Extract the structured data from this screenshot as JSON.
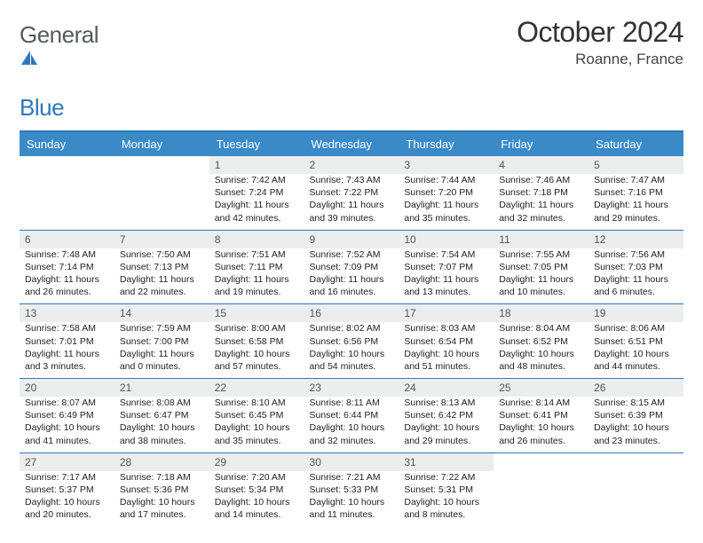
{
  "brand": {
    "name_a": "General",
    "name_b": "Blue"
  },
  "title": {
    "month": "October 2024",
    "location": "Roanne, France"
  },
  "colors": {
    "accent": "#3a8ac8",
    "rule": "#2f77bb",
    "daynum_bg": "#eceded"
  },
  "weekday_labels": [
    "Sunday",
    "Monday",
    "Tuesday",
    "Wednesday",
    "Thursday",
    "Friday",
    "Saturday"
  ],
  "weeks": [
    [
      {
        "n": "",
        "sr": "",
        "ss": "",
        "dl": ""
      },
      {
        "n": "",
        "sr": "",
        "ss": "",
        "dl": ""
      },
      {
        "n": "1",
        "sr": "Sunrise: 7:42 AM",
        "ss": "Sunset: 7:24 PM",
        "dl": "Daylight: 11 hours and 42 minutes."
      },
      {
        "n": "2",
        "sr": "Sunrise: 7:43 AM",
        "ss": "Sunset: 7:22 PM",
        "dl": "Daylight: 11 hours and 39 minutes."
      },
      {
        "n": "3",
        "sr": "Sunrise: 7:44 AM",
        "ss": "Sunset: 7:20 PM",
        "dl": "Daylight: 11 hours and 35 minutes."
      },
      {
        "n": "4",
        "sr": "Sunrise: 7:46 AM",
        "ss": "Sunset: 7:18 PM",
        "dl": "Daylight: 11 hours and 32 minutes."
      },
      {
        "n": "5",
        "sr": "Sunrise: 7:47 AM",
        "ss": "Sunset: 7:16 PM",
        "dl": "Daylight: 11 hours and 29 minutes."
      }
    ],
    [
      {
        "n": "6",
        "sr": "Sunrise: 7:48 AM",
        "ss": "Sunset: 7:14 PM",
        "dl": "Daylight: 11 hours and 26 minutes."
      },
      {
        "n": "7",
        "sr": "Sunrise: 7:50 AM",
        "ss": "Sunset: 7:13 PM",
        "dl": "Daylight: 11 hours and 22 minutes."
      },
      {
        "n": "8",
        "sr": "Sunrise: 7:51 AM",
        "ss": "Sunset: 7:11 PM",
        "dl": "Daylight: 11 hours and 19 minutes."
      },
      {
        "n": "9",
        "sr": "Sunrise: 7:52 AM",
        "ss": "Sunset: 7:09 PM",
        "dl": "Daylight: 11 hours and 16 minutes."
      },
      {
        "n": "10",
        "sr": "Sunrise: 7:54 AM",
        "ss": "Sunset: 7:07 PM",
        "dl": "Daylight: 11 hours and 13 minutes."
      },
      {
        "n": "11",
        "sr": "Sunrise: 7:55 AM",
        "ss": "Sunset: 7:05 PM",
        "dl": "Daylight: 11 hours and 10 minutes."
      },
      {
        "n": "12",
        "sr": "Sunrise: 7:56 AM",
        "ss": "Sunset: 7:03 PM",
        "dl": "Daylight: 11 hours and 6 minutes."
      }
    ],
    [
      {
        "n": "13",
        "sr": "Sunrise: 7:58 AM",
        "ss": "Sunset: 7:01 PM",
        "dl": "Daylight: 11 hours and 3 minutes."
      },
      {
        "n": "14",
        "sr": "Sunrise: 7:59 AM",
        "ss": "Sunset: 7:00 PM",
        "dl": "Daylight: 11 hours and 0 minutes."
      },
      {
        "n": "15",
        "sr": "Sunrise: 8:00 AM",
        "ss": "Sunset: 6:58 PM",
        "dl": "Daylight: 10 hours and 57 minutes."
      },
      {
        "n": "16",
        "sr": "Sunrise: 8:02 AM",
        "ss": "Sunset: 6:56 PM",
        "dl": "Daylight: 10 hours and 54 minutes."
      },
      {
        "n": "17",
        "sr": "Sunrise: 8:03 AM",
        "ss": "Sunset: 6:54 PM",
        "dl": "Daylight: 10 hours and 51 minutes."
      },
      {
        "n": "18",
        "sr": "Sunrise: 8:04 AM",
        "ss": "Sunset: 6:52 PM",
        "dl": "Daylight: 10 hours and 48 minutes."
      },
      {
        "n": "19",
        "sr": "Sunrise: 8:06 AM",
        "ss": "Sunset: 6:51 PM",
        "dl": "Daylight: 10 hours and 44 minutes."
      }
    ],
    [
      {
        "n": "20",
        "sr": "Sunrise: 8:07 AM",
        "ss": "Sunset: 6:49 PM",
        "dl": "Daylight: 10 hours and 41 minutes."
      },
      {
        "n": "21",
        "sr": "Sunrise: 8:08 AM",
        "ss": "Sunset: 6:47 PM",
        "dl": "Daylight: 10 hours and 38 minutes."
      },
      {
        "n": "22",
        "sr": "Sunrise: 8:10 AM",
        "ss": "Sunset: 6:45 PM",
        "dl": "Daylight: 10 hours and 35 minutes."
      },
      {
        "n": "23",
        "sr": "Sunrise: 8:11 AM",
        "ss": "Sunset: 6:44 PM",
        "dl": "Daylight: 10 hours and 32 minutes."
      },
      {
        "n": "24",
        "sr": "Sunrise: 8:13 AM",
        "ss": "Sunset: 6:42 PM",
        "dl": "Daylight: 10 hours and 29 minutes."
      },
      {
        "n": "25",
        "sr": "Sunrise: 8:14 AM",
        "ss": "Sunset: 6:41 PM",
        "dl": "Daylight: 10 hours and 26 minutes."
      },
      {
        "n": "26",
        "sr": "Sunrise: 8:15 AM",
        "ss": "Sunset: 6:39 PM",
        "dl": "Daylight: 10 hours and 23 minutes."
      }
    ],
    [
      {
        "n": "27",
        "sr": "Sunrise: 7:17 AM",
        "ss": "Sunset: 5:37 PM",
        "dl": "Daylight: 10 hours and 20 minutes."
      },
      {
        "n": "28",
        "sr": "Sunrise: 7:18 AM",
        "ss": "Sunset: 5:36 PM",
        "dl": "Daylight: 10 hours and 17 minutes."
      },
      {
        "n": "29",
        "sr": "Sunrise: 7:20 AM",
        "ss": "Sunset: 5:34 PM",
        "dl": "Daylight: 10 hours and 14 minutes."
      },
      {
        "n": "30",
        "sr": "Sunrise: 7:21 AM",
        "ss": "Sunset: 5:33 PM",
        "dl": "Daylight: 10 hours and 11 minutes."
      },
      {
        "n": "31",
        "sr": "Sunrise: 7:22 AM",
        "ss": "Sunset: 5:31 PM",
        "dl": "Daylight: 10 hours and 8 minutes."
      },
      {
        "n": "",
        "sr": "",
        "ss": "",
        "dl": ""
      },
      {
        "n": "",
        "sr": "",
        "ss": "",
        "dl": ""
      }
    ]
  ]
}
